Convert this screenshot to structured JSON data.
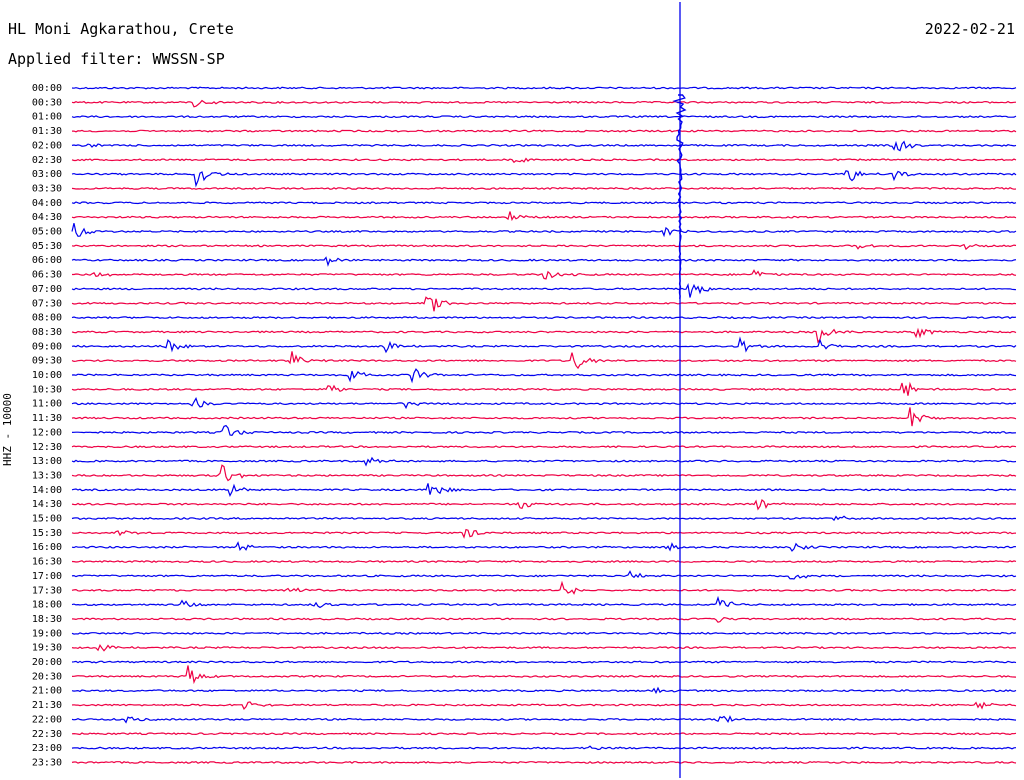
{
  "header": {
    "station": "HL Moni Agkarathou, Crete",
    "filter": "Applied filter: WWSSN-SP",
    "date": "2022-02-21"
  },
  "chart_data": {
    "type": "line",
    "title": "HL Moni Agkarathou, Crete",
    "subtitle": "Applied filter: WWSSN-SP",
    "ylabel": "HHZ - 10000",
    "xlabel": "",
    "row_labels": [
      "00:00",
      "00:30",
      "01:00",
      "01:30",
      "02:00",
      "02:30",
      "03:00",
      "03:30",
      "04:00",
      "04:30",
      "05:00",
      "05:30",
      "06:00",
      "06:30",
      "07:00",
      "07:30",
      "08:00",
      "08:30",
      "09:00",
      "09:30",
      "10:00",
      "10:30",
      "11:00",
      "11:30",
      "12:00",
      "12:30",
      "13:00",
      "13:30",
      "14:00",
      "14:30",
      "15:00",
      "15:30",
      "16:00",
      "16:30",
      "17:00",
      "17:30",
      "18:00",
      "18:30",
      "19:00",
      "19:30",
      "20:00",
      "20:30",
      "21:00",
      "21:30",
      "22:00",
      "22:30",
      "23:00",
      "23:30"
    ],
    "trace_colors": [
      "#0000ee",
      "#ee0044"
    ],
    "grid": false,
    "legend": "none"
  }
}
